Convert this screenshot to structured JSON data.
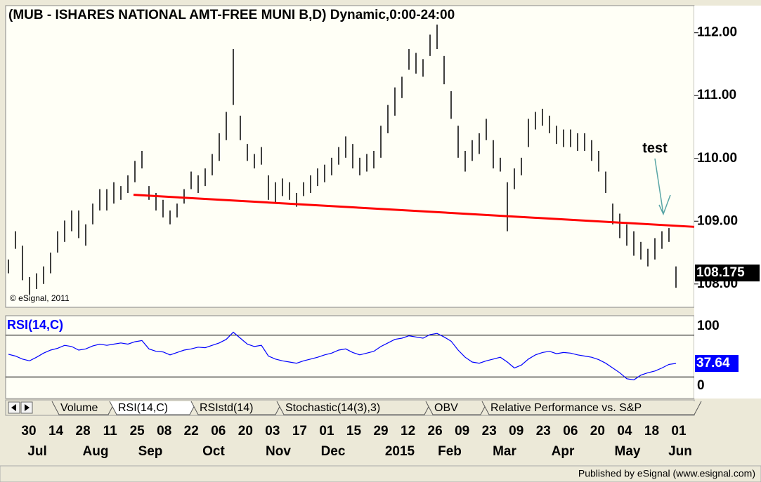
{
  "chart_data": [
    {
      "type": "hl_bar",
      "title": "(MUB - ISHARES NATIONAL AMT-FREE MUNI B,D) Dynamic,0:00-24:00",
      "watermark": "© eSignal, 2011",
      "color": "#000000",
      "high": [
        108.39,
        108.84,
        108.61,
        108.11,
        108.17,
        108.28,
        108.5,
        108.84,
        109.01,
        109.17,
        109.17,
        108.95,
        109.28,
        109.51,
        109.51,
        109.62,
        109.56,
        109.73,
        109.96,
        110.12,
        109.56,
        109.45,
        109.34,
        109.17,
        109.28,
        109.51,
        109.79,
        109.73,
        109.84,
        110.07,
        110.4,
        110.74,
        111.74,
        110.68,
        110.23,
        110.07,
        110.18,
        109.73,
        109.62,
        109.68,
        109.62,
        109.45,
        109.62,
        109.73,
        109.84,
        109.9,
        110.01,
        110.18,
        110.35,
        110.23,
        110.01,
        110.07,
        110.12,
        110.52,
        110.85,
        111.13,
        111.3,
        111.74,
        111.68,
        111.58,
        111.97,
        112.13,
        111.63,
        111.07,
        110.52,
        110.12,
        110.29,
        110.4,
        110.63,
        110.29,
        110.01,
        109.62,
        109.84,
        110.01,
        110.63,
        110.74,
        110.79,
        110.68,
        110.52,
        110.46,
        110.46,
        110.4,
        110.4,
        110.29,
        110.12,
        109.79,
        109.28,
        109.12,
        108.95,
        108.84,
        108.67,
        108.56,
        108.73,
        108.84,
        108.89,
        108.28
      ],
      "low": [
        108.17,
        108.56,
        108.06,
        107.83,
        107.92,
        108.0,
        108.17,
        108.5,
        108.67,
        108.84,
        108.73,
        108.61,
        108.95,
        109.17,
        109.17,
        109.28,
        109.34,
        109.45,
        109.62,
        109.84,
        109.34,
        109.17,
        109.06,
        108.95,
        109.06,
        109.28,
        109.51,
        109.45,
        109.56,
        109.73,
        109.96,
        110.29,
        110.85,
        110.29,
        109.96,
        109.84,
        109.9,
        109.34,
        109.28,
        109.4,
        109.34,
        109.23,
        109.4,
        109.45,
        109.56,
        109.62,
        109.73,
        109.9,
        110.01,
        109.84,
        109.73,
        109.79,
        109.84,
        110.01,
        110.4,
        110.68,
        110.96,
        111.41,
        111.35,
        111.3,
        111.63,
        111.74,
        111.18,
        110.63,
        110.01,
        109.79,
        109.96,
        110.07,
        110.29,
        109.84,
        109.79,
        108.84,
        109.51,
        109.73,
        110.18,
        110.46,
        110.52,
        110.4,
        110.23,
        110.18,
        110.18,
        110.12,
        110.12,
        109.96,
        109.79,
        109.45,
        108.95,
        108.73,
        108.61,
        108.45,
        108.39,
        108.28,
        108.39,
        108.56,
        108.67,
        107.94
      ],
      "last_value": 108.175,
      "trendline": {
        "color": "#ff0000",
        "start": 109.42,
        "end": 108.91
      },
      "annotation": "test",
      "ylim": [
        107.64,
        112.41
      ],
      "yticks": [
        {
          "value": 108,
          "label": "108.00"
        },
        {
          "value": 109,
          "label": "109.00"
        },
        {
          "value": 110,
          "label": "110.00"
        },
        {
          "value": 111,
          "label": "111.00"
        },
        {
          "value": 112,
          "label": "112.00"
        }
      ]
    },
    {
      "type": "line",
      "label": "RSI(14,C)",
      "color": "#0000ff",
      "values": [
        53,
        50,
        45,
        42,
        48,
        55,
        60,
        63,
        68,
        66,
        60,
        62,
        67,
        70,
        68,
        70,
        72,
        70,
        74,
        76,
        62,
        58,
        57,
        52,
        56,
        60,
        62,
        65,
        64,
        68,
        72,
        78,
        90,
        80,
        70,
        66,
        68,
        50,
        45,
        42,
        40,
        38,
        42,
        45,
        48,
        52,
        55,
        60,
        62,
        56,
        52,
        55,
        58,
        66,
        72,
        78,
        80,
        84,
        82,
        80,
        86,
        88,
        82,
        75,
        60,
        48,
        40,
        38,
        42,
        45,
        48,
        40,
        30,
        35,
        45,
        52,
        56,
        58,
        54,
        56,
        55,
        52,
        50,
        48,
        44,
        38,
        30,
        22,
        12,
        10,
        18,
        22,
        25,
        30,
        36,
        37.64
      ],
      "last_value": 37.64,
      "bands": [
        85,
        15
      ],
      "ylim": [
        0,
        100
      ],
      "yticks": [
        0,
        100
      ]
    }
  ],
  "x_axis": {
    "days": [
      "30",
      "14",
      "28",
      "11",
      "25",
      "08",
      "22",
      "06",
      "20",
      "03",
      "17",
      "01",
      "15",
      "29",
      "12",
      "26",
      "09",
      "23",
      "09",
      "23",
      "06",
      "20",
      "04",
      "18",
      "01"
    ],
    "months": [
      "Jul",
      "Aug",
      "Sep",
      "Oct",
      "Nov",
      "Dec",
      "2015",
      "Feb",
      "Mar",
      "Apr",
      "May",
      "Jun"
    ]
  },
  "tabs": [
    "Volume",
    "RSI(14,C)",
    "RSIstd(14)",
    "Stochastic(14(3),3)",
    "OBV",
    "Relative Performance vs. S&P"
  ],
  "footer": "Published by eSignal (www.esignal.com)"
}
